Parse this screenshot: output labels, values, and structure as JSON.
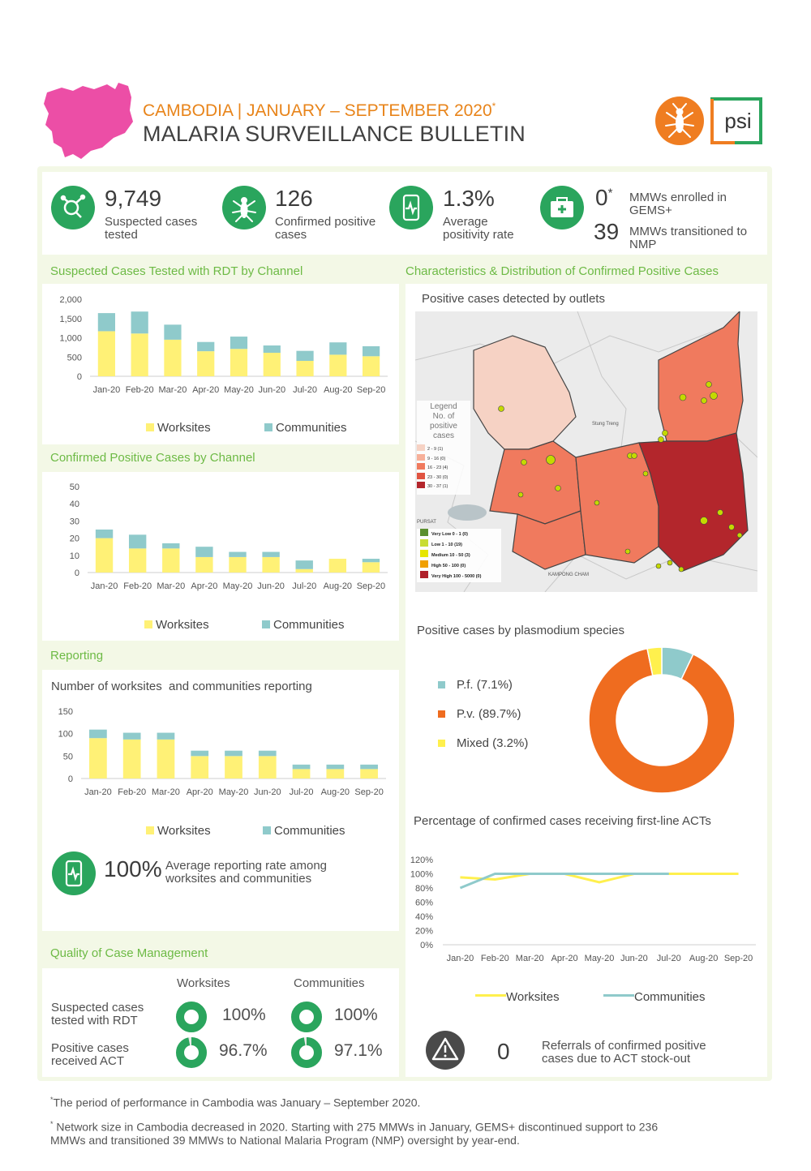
{
  "header": {
    "subtitle": "CAMBODIA | JANUARY – SEPTEMBER 2020",
    "subtitle_mark": "*",
    "title": "MALARIA SURVEILLANCE BULLETIN",
    "psi_logo": "psi"
  },
  "kpis": {
    "tested": {
      "value": "9,749",
      "label_1": "Suspected cases",
      "label_2": "tested",
      "icon": "magnifier-molecule-icon"
    },
    "confirmed": {
      "value": "126",
      "label_1": "Confirmed positive",
      "label_2": "cases",
      "icon": "mosquito-icon"
    },
    "positivity": {
      "value": "1.3%",
      "label_1": "Average",
      "label_2": "positivity rate",
      "icon": "phone-pulse-icon"
    },
    "enrolled": {
      "value": "0",
      "mark": "*",
      "label_1": "MMWs enrolled in",
      "label_2": "GEMS+",
      "icon": "medical-kit-icon"
    },
    "transitioned": {
      "value": "39",
      "label_1": "MMWs transitioned to",
      "label_2": "NMP"
    }
  },
  "sections": {
    "rdt": "Suspected Cases Tested with RDT by Channel",
    "confirmed": "Confirmed Positive Cases by Channel",
    "reporting": "Reporting",
    "quality": "Quality of Case Management",
    "characteristics": "Characteristics & Distribution of Confirmed Positive Cases"
  },
  "legend": {
    "worksites": "Worksites",
    "communities": "Communities"
  },
  "colors": {
    "worksites": "#fff176",
    "communities": "#8fcacb",
    "green": "#2aa55d",
    "orange": "#ef6c1f",
    "yellow": "#fff04d",
    "teal": "#8fcacb"
  },
  "months": [
    "Jan-20",
    "Feb-20",
    "Mar-20",
    "Apr-20",
    "May-20",
    "Jun-20",
    "Jul-20",
    "Aug-20",
    "Sep-20"
  ],
  "chart_data": [
    {
      "type": "bar",
      "stacked": true,
      "title": "Suspected Cases Tested with RDT by Channel",
      "categories": [
        "Jan-20",
        "Feb-20",
        "Mar-20",
        "Apr-20",
        "May-20",
        "Jun-20",
        "Jul-20",
        "Aug-20",
        "Sep-20"
      ],
      "series": [
        {
          "name": "Worksites",
          "values": [
            1170,
            1110,
            950,
            650,
            710,
            610,
            400,
            560,
            520
          ]
        },
        {
          "name": "Communities",
          "values": [
            470,
            570,
            390,
            240,
            320,
            190,
            260,
            320,
            260
          ]
        }
      ],
      "yticks": [
        "0",
        "500",
        "1,000",
        "1,500",
        "2,000"
      ],
      "ylim": [
        0,
        2000
      ]
    },
    {
      "type": "bar",
      "stacked": true,
      "title": "Confirmed Positive Cases by Channel",
      "categories": [
        "Jan-20",
        "Feb-20",
        "Mar-20",
        "Apr-20",
        "May-20",
        "Jun-20",
        "Jul-20",
        "Aug-20",
        "Sep-20"
      ],
      "series": [
        {
          "name": "Worksites",
          "values": [
            20,
            14,
            14,
            9,
            9,
            9,
            2,
            8,
            6
          ]
        },
        {
          "name": "Communities",
          "values": [
            5,
            8,
            3,
            6,
            3,
            3,
            5,
            0,
            2
          ]
        }
      ],
      "yticks": [
        "0",
        "10",
        "20",
        "30",
        "40",
        "50"
      ],
      "ylim": [
        0,
        50
      ]
    },
    {
      "type": "bar",
      "stacked": true,
      "title": "Number of worksites  and communities reporting",
      "categories": [
        "Jan-20",
        "Feb-20",
        "Mar-20",
        "Apr-20",
        "May-20",
        "Jun-20",
        "Jul-20",
        "Aug-20",
        "Sep-20"
      ],
      "series": [
        {
          "name": "Worksites",
          "values": [
            90,
            87,
            87,
            50,
            50,
            50,
            21,
            21,
            21
          ]
        },
        {
          "name": "Communities",
          "values": [
            19,
            15,
            15,
            12,
            12,
            12,
            10,
            10,
            10
          ]
        }
      ],
      "yticks": [
        "0",
        "50",
        "100",
        "150"
      ],
      "ylim": [
        0,
        150
      ]
    },
    {
      "type": "pie",
      "title": "Positive cases by plasmodium species",
      "donut": true,
      "categories": [
        "P.f. (7.1%)",
        "P.v. (89.7%)",
        "Mixed (3.2%)"
      ],
      "values": [
        7.1,
        89.7,
        3.2
      ]
    },
    {
      "type": "line",
      "title": "Percentage of confirmed cases receiving first-line ACTs",
      "categories": [
        "Jan-20",
        "Feb-20",
        "Mar-20",
        "Apr-20",
        "May-20",
        "Jun-20",
        "Jul-20",
        "Aug-20",
        "Sep-20"
      ],
      "series": [
        {
          "name": "Worksites",
          "values": [
            95,
            92,
            100,
            100,
            88,
            100,
            100,
            100,
            100
          ]
        },
        {
          "name": "Communities",
          "values": [
            80,
            100,
            100,
            100,
            100,
            100,
            100,
            null,
            null
          ]
        }
      ],
      "yticks": [
        "0%",
        "20%",
        "40%",
        "60%",
        "80%",
        "100%",
        "120%"
      ],
      "ylim": [
        0,
        120
      ]
    }
  ],
  "map": {
    "title": "Positive cases detected by outlets",
    "legend_title_1": "Legend",
    "legend_title_2": "No. of",
    "legend_title_3": "positive",
    "legend_title_4": "cases",
    "ranges": [
      "2 - 9 (1)",
      "9 - 16 (0)",
      "16 - 23 (4)",
      "23 - 30 (0)",
      "30 - 37 (1)"
    ],
    "range_colors": [
      "#f6d2c4",
      "#f7b09a",
      "#f07a5e",
      "#e05441",
      "#b3262c"
    ],
    "rates": [
      "Very Low 0 - 1 (0)",
      "Low 1 - 10 (19)",
      "Medium 10 - 50 (3)",
      "High 50 - 100 (0)",
      "Very High 100 - 5000 (0)"
    ],
    "rate_colors": [
      "#5b8f2e",
      "#c8dc32",
      "#e6e600",
      "#f0a000",
      "#b0202a"
    ],
    "places": [
      "PURSAT",
      "Stung Treng",
      "KAMPONG CHAM"
    ]
  },
  "reporting_rate": {
    "value": "100%",
    "label_1": "Average reporting rate among",
    "label_2": "worksites and communities"
  },
  "quality": {
    "col_worksites": "Worksites",
    "col_communities": "Communities",
    "rows": [
      {
        "label_1": "Suspected cases",
        "label_2": "tested with RDT",
        "worksites": "100%",
        "communities": "100%",
        "worksites_pct": 100,
        "communities_pct": 100
      },
      {
        "label_1": "Positive cases",
        "label_2": "received ACT",
        "worksites": "96.7%",
        "communities": "97.1%",
        "worksites_pct": 96.7,
        "communities_pct": 97.1
      }
    ]
  },
  "referrals": {
    "value": "0",
    "label_1": "Referrals of confirmed positive",
    "label_2": "cases due to ACT stock-out"
  },
  "footnotes": {
    "note1_mark": "*",
    "note1": "The period of performance in Cambodia was January – September 2020.",
    "note2_mark": "*",
    "note2_line1": " Network size in Cambodia decreased in 2020. Starting with 275 MMWs in January, GEMS+ discontinued support to 236",
    "note2_line2": "MMWs and transitioned 39 MMWs to National Malaria Program (NMP) oversight by year-end."
  }
}
